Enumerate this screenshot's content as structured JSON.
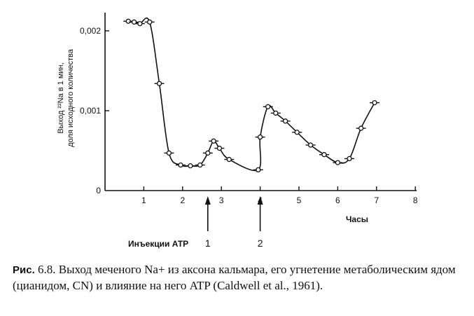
{
  "chart_data": {
    "type": "line",
    "xlabel": "Часы",
    "ylabel": "Выход ²²Na в 1 мин, доля исходного количества",
    "x_ticks": [
      "1",
      "2",
      "3",
      "4",
      "5",
      "6",
      "7",
      "8"
    ],
    "y_ticks": [
      "0",
      "0,001",
      "0,002"
    ],
    "xlim": [
      0,
      8
    ],
    "ylim": [
      0,
      0.0022
    ],
    "grid": false,
    "series": [
      {
        "points": [
          [
            0.6,
            0.00212
          ],
          [
            0.75,
            0.00211
          ],
          [
            0.9,
            0.00209
          ],
          [
            1.15,
            0.00211
          ],
          [
            1.4,
            0.00134
          ],
          [
            1.65,
            0.00047
          ],
          [
            1.95,
            0.00032
          ],
          [
            2.2,
            0.00031
          ],
          [
            2.45,
            0.00032
          ],
          [
            2.65,
            0.00047
          ],
          [
            2.8,
            0.00062
          ],
          [
            2.95,
            0.00053
          ],
          [
            3.2,
            0.00039
          ],
          [
            3.95,
            0.00026
          ],
          [
            4.0,
            0.00067
          ],
          [
            4.2,
            0.00105
          ],
          [
            4.4,
            0.00097
          ],
          [
            4.65,
            0.00087
          ],
          [
            4.95,
            0.00073
          ],
          [
            5.3,
            0.00057
          ],
          [
            5.65,
            0.00045
          ],
          [
            6.0,
            0.00035
          ],
          [
            6.3,
            0.0004
          ],
          [
            6.6,
            0.00078
          ],
          [
            6.95,
            0.0011
          ]
        ]
      }
    ],
    "annotations": {
      "injection_label": "Инъекции АТР",
      "markers": [
        {
          "label": "1",
          "x": 2.65
        },
        {
          "label": "2",
          "x": 4.0
        }
      ]
    }
  },
  "caption": {
    "prefix": "Рис.",
    "text": "6.8. Выход меченого Na+ из аксона кальмара, его угнетение метаболическим ядом (цианидом, CN)  и влияние на него  ATP (Caldwell et al., 1961)."
  }
}
